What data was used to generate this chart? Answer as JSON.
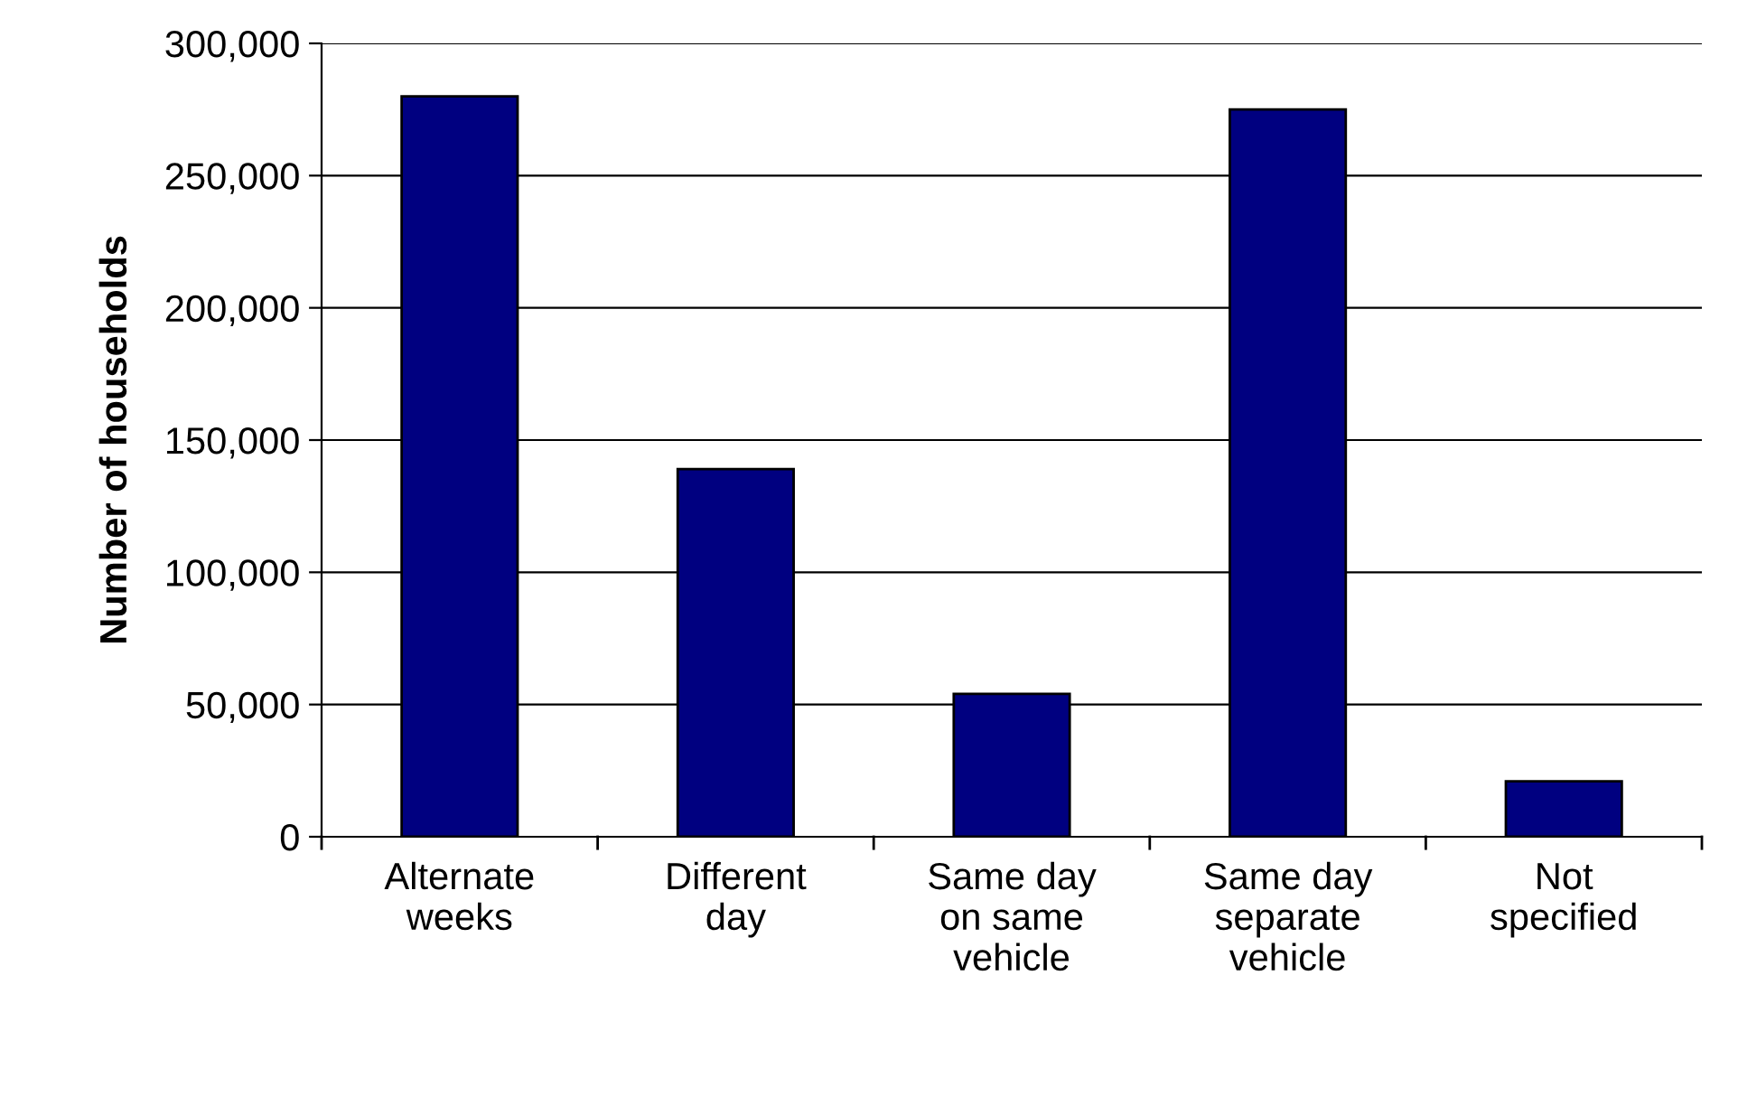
{
  "chart_data": {
    "type": "bar",
    "ylabel": "Number of households",
    "categories": [
      "Alternate\nweeks",
      "Different\nday",
      "Same day\non same\nvehicle",
      "Same day\nseparate\nvehicle",
      "Not\nspecified"
    ],
    "values": [
      280000,
      139000,
      54000,
      275000,
      21000
    ],
    "color": "#000080",
    "ylim": [
      0,
      300000
    ],
    "yticks": [
      {
        "value": 0,
        "label": "0"
      },
      {
        "value": 50000,
        "label": "50,000"
      },
      {
        "value": 100000,
        "label": "100,000"
      },
      {
        "value": 150000,
        "label": "150,000"
      },
      {
        "value": 200000,
        "label": "200,000"
      },
      {
        "value": 250000,
        "label": "250,000"
      },
      {
        "value": 300000,
        "label": "300,000"
      }
    ],
    "grid": "y",
    "legend": false
  }
}
